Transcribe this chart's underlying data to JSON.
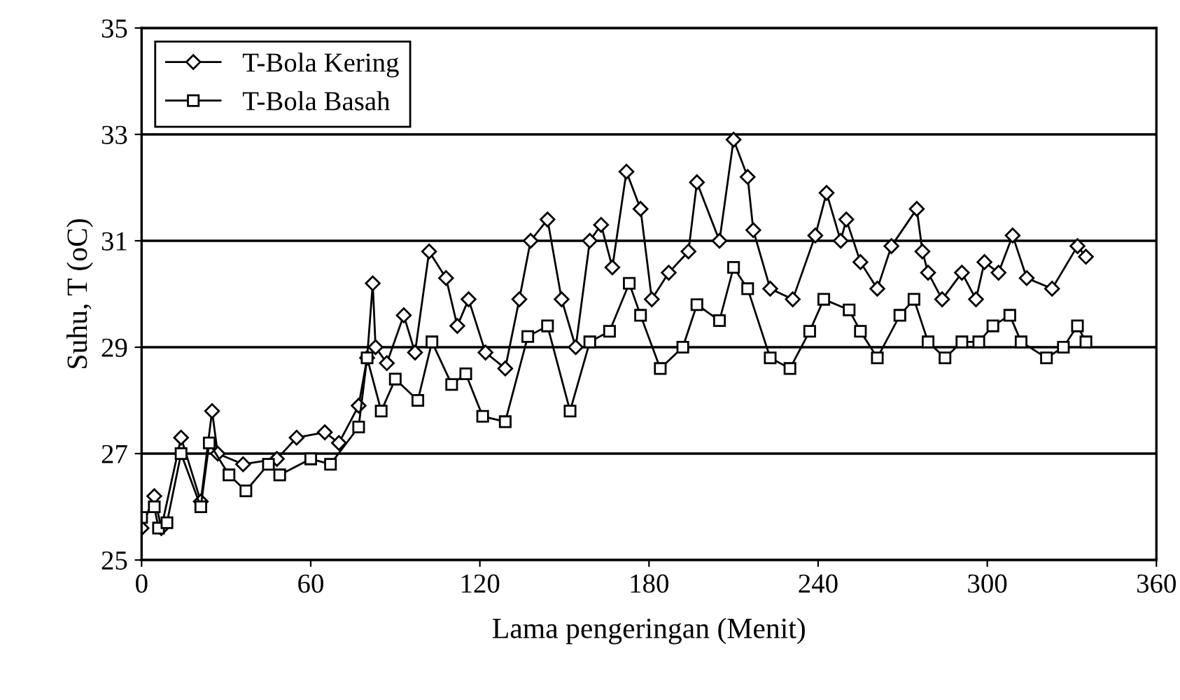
{
  "chart_data": {
    "type": "line",
    "xlabel": "Lama pengeringan (Menit)",
    "ylabel": "Suhu, T (oC)",
    "xlim": [
      0,
      360
    ],
    "xticks": [
      0,
      60,
      120,
      180,
      240,
      300,
      360
    ],
    "ylim": [
      25,
      35
    ],
    "yticks": [
      25,
      27,
      29,
      31,
      33,
      35
    ],
    "grid": "y",
    "legend": "top left",
    "series": [
      {
        "name": "T-Bola Kering",
        "color": "#000000",
        "marker": "diamond",
        "x": [
          0,
          4.5,
          7,
          14,
          21,
          25,
          27,
          36,
          48,
          55,
          65,
          70,
          77,
          80,
          82,
          83,
          87,
          93,
          97,
          102,
          108,
          112,
          116,
          122,
          129,
          134,
          138,
          144,
          149,
          154,
          159,
          163,
          167,
          172,
          177,
          181,
          187,
          194,
          197,
          205,
          210,
          215,
          217,
          223,
          231,
          239,
          243,
          248,
          250,
          255,
          261,
          266,
          275,
          277,
          279,
          284,
          291,
          296,
          299,
          304,
          309,
          314,
          323,
          332,
          335
        ],
        "values": [
          25.6,
          26.2,
          25.6,
          27.3,
          26.1,
          27.8,
          27.0,
          26.8,
          26.9,
          27.3,
          27.4,
          27.2,
          27.9,
          28.8,
          30.2,
          29.0,
          28.7,
          29.6,
          28.9,
          30.8,
          30.3,
          29.4,
          29.9,
          28.9,
          28.6,
          29.9,
          31.0,
          31.4,
          29.9,
          29.0,
          31.0,
          31.3,
          30.5,
          32.3,
          31.6,
          29.9,
          30.4,
          30.8,
          32.1,
          31.0,
          32.9,
          32.2,
          31.2,
          30.1,
          29.9,
          31.1,
          31.9,
          31.0,
          31.4,
          30.6,
          30.1,
          30.9,
          31.6,
          30.8,
          30.4,
          29.9,
          30.4,
          29.9,
          30.6,
          30.4,
          31.1,
          30.3,
          30.1,
          30.9,
          30.7
        ]
      },
      {
        "name": "T-Bola Basah",
        "color": "#000000",
        "marker": "square",
        "x": [
          0,
          4.5,
          6,
          9,
          14,
          21,
          24,
          31,
          37,
          45,
          49,
          60,
          67,
          77,
          80,
          85,
          90,
          98,
          103,
          110,
          115,
          121,
          129,
          137,
          144,
          152,
          159,
          166,
          173,
          177,
          184,
          192,
          197,
          205,
          210,
          215,
          223,
          230,
          237,
          242,
          251,
          255,
          261,
          269,
          274,
          279,
          285,
          291,
          297,
          302,
          308,
          312,
          321,
          327,
          332,
          335
        ],
        "values": [
          25.8,
          26.0,
          25.6,
          25.7,
          27.0,
          26.0,
          27.2,
          26.6,
          26.3,
          26.8,
          26.6,
          26.9,
          26.8,
          27.5,
          28.8,
          27.8,
          28.4,
          28.0,
          29.1,
          28.3,
          28.5,
          27.7,
          27.6,
          29.2,
          29.4,
          27.8,
          29.1,
          29.3,
          30.2,
          29.6,
          28.6,
          29.0,
          29.8,
          29.5,
          30.5,
          30.1,
          28.8,
          28.6,
          29.3,
          29.9,
          29.7,
          29.3,
          28.8,
          29.6,
          29.9,
          29.1,
          28.8,
          29.1,
          29.1,
          29.4,
          29.6,
          29.1,
          28.8,
          29.0,
          29.4,
          29.1
        ]
      }
    ]
  }
}
